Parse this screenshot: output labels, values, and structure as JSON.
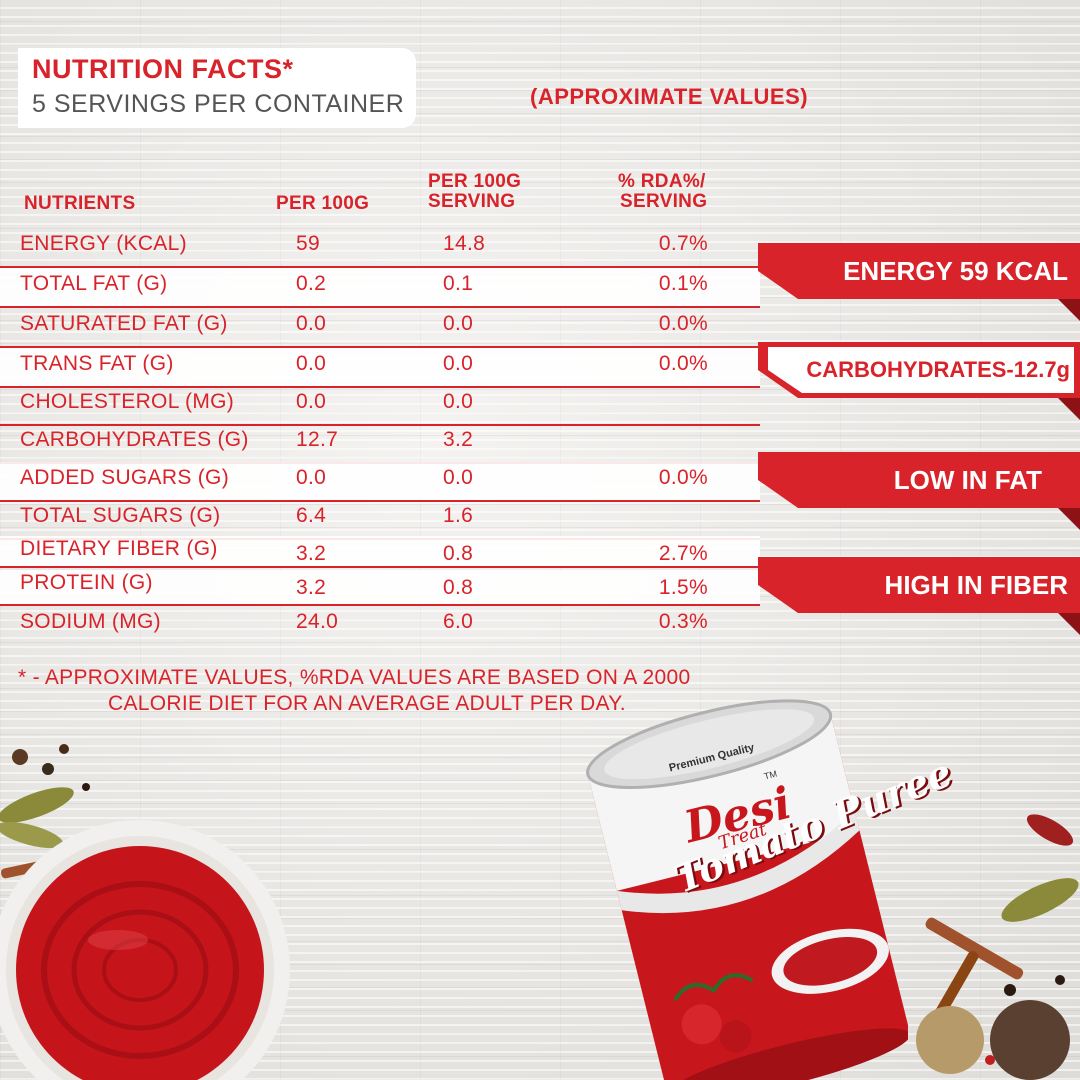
{
  "title": {
    "main": "NUTRITION FACTS*",
    "servings": "5 SERVINGS PER CONTAINER"
  },
  "approx_label": "(APPROXIMATE VALUES)",
  "table": {
    "headers": {
      "nutrients": "NUTRIENTS",
      "per100g": "PER 100G",
      "per_serving_1": "PER 100G",
      "per_serving_2": "SERVING",
      "rda_1": "% RDA%/",
      "rda_2": "SERVING"
    },
    "rows": [
      {
        "name": "ENERGY (KCAL)",
        "per100g": "59",
        "serving": "14.8",
        "rda": "0.7%"
      },
      {
        "name": "TOTAL FAT (G)",
        "per100g": "0.2",
        "serving": "0.1",
        "rda": "0.1%"
      },
      {
        "name": "SATURATED FAT (G)",
        "per100g": "0.0",
        "serving": "0.0",
        "rda": "0.0%"
      },
      {
        "name": "TRANS FAT (G)",
        "per100g": "0.0",
        "serving": "0.0",
        "rda": "0.0%"
      },
      {
        "name": "CHOLESTEROL (MG)",
        "per100g": "0.0",
        "serving": "0.0",
        "rda": ""
      },
      {
        "name": "CARBOHYDRATES (G)",
        "per100g": "12.7",
        "serving": "3.2",
        "rda": ""
      },
      {
        "name": "ADDED SUGARS (G)",
        "per100g": "0.0",
        "serving": "0.0",
        "rda": "0.0%"
      },
      {
        "name": "TOTAL SUGARS (G)",
        "per100g": "6.4",
        "serving": "1.6",
        "rda": ""
      },
      {
        "name": "DIETARY FIBER (G)",
        "per100g": "3.2",
        "serving": "0.8",
        "rda": "2.7%"
      },
      {
        "name": "PROTEIN (G)",
        "per100g": "3.2",
        "serving": "0.8",
        "rda": "1.5%"
      },
      {
        "name": "SODIUM (MG)",
        "per100g": "24.0",
        "serving": "6.0",
        "rda": "0.3%"
      }
    ]
  },
  "footnote": {
    "line1": "* - APPROXIMATE VALUES, %RDA VALUES ARE BASED ON A 2000",
    "line2": "CALORIE DIET FOR AN AVERAGE ADULT PER DAY."
  },
  "banners": [
    {
      "text": "ENERGY 59 KCAL"
    },
    {
      "text": "CARBOHYDRATES-12.7g"
    },
    {
      "text": "LOW IN FAT"
    },
    {
      "text": "HIGH IN FIBER"
    }
  ],
  "product": {
    "quality": "Premium Quality",
    "brand": "Desi",
    "brand_sub": "Treat",
    "tm": "TM",
    "name": "Tomato Puree"
  },
  "colors": {
    "accent": "#d8232a",
    "text_gray": "#555555",
    "background": "#e7e6e3"
  }
}
